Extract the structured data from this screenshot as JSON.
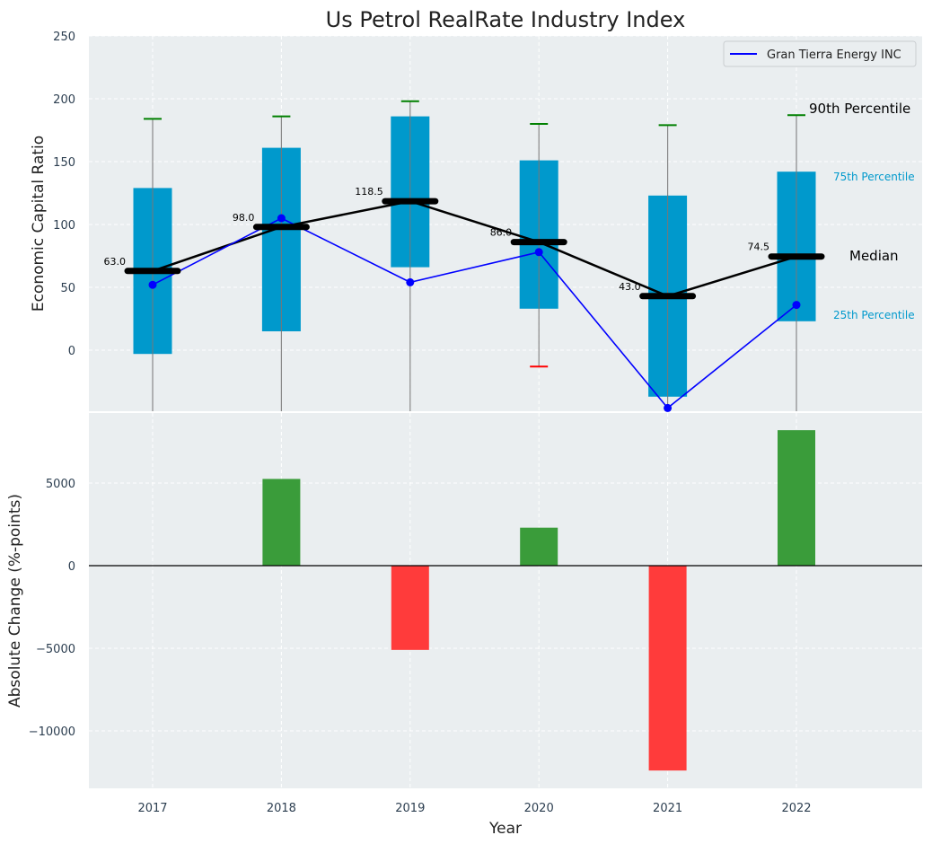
{
  "chart_data": {
    "title": "Us Petrol RealRate Industry Index",
    "xlabel": "Year",
    "categories": [
      "2017",
      "2018",
      "2019",
      "2020",
      "2021",
      "2022"
    ],
    "top": {
      "type": "box",
      "ylabel": "Economic Capital Ratio",
      "ylim": [
        -50,
        250
      ],
      "yticks": [
        "0",
        "50",
        "100",
        "150",
        "200",
        "250"
      ],
      "p25": [
        -3,
        15,
        66,
        33,
        -37,
        23
      ],
      "p75": [
        129,
        161,
        186,
        151,
        123,
        142
      ],
      "median": [
        63.0,
        98.0,
        118.5,
        86.0,
        43.0,
        74.5
      ],
      "median_labels": [
        "63.0",
        "98.0",
        "118.5",
        "86.0",
        "43.0",
        "74.5"
      ],
      "p90": [
        184,
        186,
        198,
        180,
        179,
        187
      ],
      "p10": [
        null,
        null,
        null,
        -13,
        null,
        null
      ],
      "company_name": "Gran Tierra Energy INC",
      "company": [
        52,
        105,
        54,
        78,
        -46,
        36
      ],
      "annotations": {
        "p90": "90th Percentile",
        "p75": "75th Percentile",
        "median": "Median",
        "p25": "25th Percentile"
      }
    },
    "bottom": {
      "type": "bar",
      "ylabel": "Absolute Change (%-points)",
      "ylim": [
        -13500,
        8500
      ],
      "yticks": [
        "5000",
        "0",
        "−5000",
        "−10000"
      ],
      "values": [
        0,
        5250,
        -5100,
        2300,
        -12400,
        8200
      ]
    },
    "colors": {
      "box": "#0099cc",
      "company": "#0000ff",
      "median": "#000000",
      "positive": "#3a9c3a",
      "negative": "#ff3b3b",
      "whisker_top": "#008000",
      "whisker_bottom": "#ff0000",
      "panel_bg": "#eaeef0"
    }
  }
}
